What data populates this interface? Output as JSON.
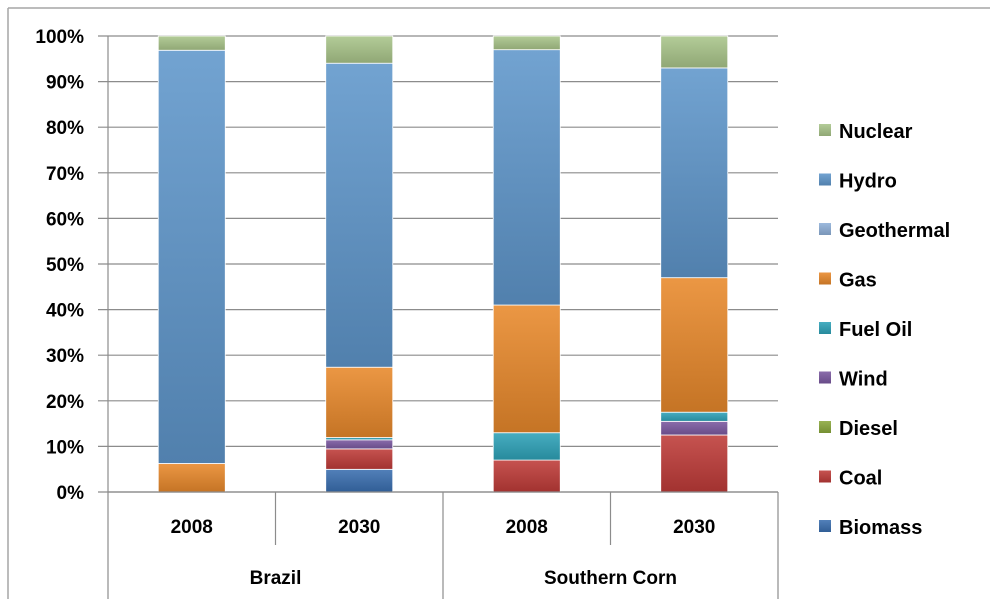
{
  "chart_data": {
    "type": "bar",
    "stacked": true,
    "percent": true,
    "groups": [
      {
        "label": "Brazil",
        "categories": [
          "2008",
          "2030"
        ]
      },
      {
        "label": "Southern Corn",
        "categories": [
          "2008",
          "2030"
        ]
      }
    ],
    "categories": [
      "2008",
      "2030",
      "2008",
      "2030"
    ],
    "series": [
      {
        "name": "Biomass",
        "color": "#3a6fb0",
        "values": [
          0.0,
          5.0,
          0.0,
          0.0
        ]
      },
      {
        "name": "Coal",
        "color": "#be3b38",
        "values": [
          0.0,
          4.5,
          7.0,
          12.5
        ]
      },
      {
        "name": "Diesel",
        "color": "#8aa83c",
        "values": [
          0.0,
          0.0,
          0.0,
          0.0
        ]
      },
      {
        "name": "Wind",
        "color": "#7a58a0",
        "values": [
          0.0,
          2.0,
          0.0,
          3.0
        ]
      },
      {
        "name": "Fuel Oil",
        "color": "#2ea2b8",
        "values": [
          0.0,
          0.5,
          6.0,
          2.0
        ]
      },
      {
        "name": "Gas",
        "color": "#e8892b",
        "values": [
          6.0,
          15.5,
          28.0,
          29.5
        ]
      },
      {
        "name": "Geothermal",
        "color": "#8fb0d8",
        "values": [
          0.0,
          0.0,
          0.0,
          0.0
        ]
      },
      {
        "name": "Hydro",
        "color": "#5f96cb",
        "values": [
          87.0,
          67.0,
          56.0,
          46.0
        ]
      },
      {
        "name": "Nuclear",
        "color": "#a9c58a",
        "values": [
          3.0,
          6.0,
          3.0,
          7.0
        ]
      }
    ],
    "yticks": [
      "0%",
      "10%",
      "20%",
      "30%",
      "40%",
      "50%",
      "60%",
      "70%",
      "80%",
      "90%",
      "100%"
    ],
    "ylim": [
      0,
      100
    ],
    "grid": true,
    "legend": {
      "position": "right",
      "order": [
        "Nuclear",
        "Hydro",
        "Geothermal",
        "Gas",
        "Fuel Oil",
        "Wind",
        "Diesel",
        "Coal",
        "Biomass"
      ]
    },
    "title": "",
    "xlabel": "",
    "ylabel": ""
  }
}
